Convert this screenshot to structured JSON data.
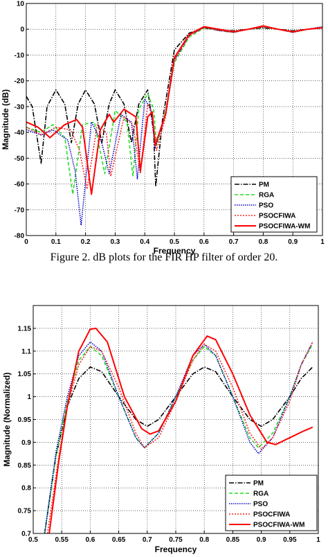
{
  "caption": "Figure 2.    dB plots for the FIR HP filter of order 20.",
  "legend": [
    {
      "name": "PM",
      "color": "#000000",
      "dash": "7 2 1.5 2"
    },
    {
      "name": "RGA",
      "color": "#22dd22",
      "dash": "5 3"
    },
    {
      "name": "PSO",
      "color": "#0000cc",
      "dash": "1.5 1.5"
    },
    {
      "name": "PSOCFIWA",
      "color": "#ff2222",
      "dash": "2 2"
    },
    {
      "name": "PSOCFIWA-WM",
      "color": "#ff0000",
      "dash": ""
    }
  ],
  "chart_data": [
    {
      "type": "line",
      "title": "",
      "xlabel": "Frequency",
      "ylabel": "Magnitude (dB)",
      "xlim": [
        0,
        1
      ],
      "ylim": [
        -80,
        10
      ],
      "grid": true,
      "legend_position": "bottom-right",
      "xticks": [
        0,
        0.1,
        0.2,
        0.3,
        0.4,
        0.5,
        0.6,
        0.7,
        0.8,
        0.9,
        1
      ],
      "yticks": [
        10,
        0,
        -10,
        -20,
        -30,
        -40,
        -50,
        -60,
        -70,
        -80
      ],
      "series": [
        {
          "name": "PM",
          "x": [
            0,
            0.02,
            0.05,
            0.07,
            0.1,
            0.13,
            0.152,
            0.175,
            0.2,
            0.23,
            0.255,
            0.28,
            0.3,
            0.33,
            0.355,
            0.38,
            0.41,
            0.43,
            0.437,
            0.46,
            0.5,
            0.55,
            0.6,
            0.65,
            0.7,
            0.75,
            0.8,
            0.85,
            0.9,
            0.95,
            1.0
          ],
          "y": [
            -26,
            -30,
            -52,
            -30,
            -23.5,
            -29,
            -44,
            -29,
            -23.5,
            -29,
            -44,
            -29,
            -23.5,
            -29,
            -44,
            -29,
            -23.5,
            -40,
            -61,
            -35,
            -8,
            -1.5,
            0.5,
            -0.3,
            -0.6,
            0,
            0.5,
            0,
            -0.6,
            0,
            0.5
          ]
        },
        {
          "name": "RGA",
          "x": [
            0,
            0.05,
            0.09,
            0.13,
            0.157,
            0.19,
            0.23,
            0.265,
            0.3,
            0.34,
            0.36,
            0.38,
            0.41,
            0.43,
            0.44,
            0.47,
            0.5,
            0.55,
            0.6,
            0.65,
            0.7,
            0.75,
            0.8,
            0.85,
            0.9,
            0.95,
            1.0
          ],
          "y": [
            -38,
            -40,
            -37,
            -42,
            -64,
            -37,
            -36,
            -56,
            -31.5,
            -36,
            -57,
            -31,
            -25,
            -31,
            -45,
            -32,
            -13,
            -3,
            0.5,
            -0.5,
            -1.2,
            0,
            0.7,
            0,
            -1.2,
            0,
            0.8
          ]
        },
        {
          "name": "PSO",
          "x": [
            0,
            0.05,
            0.09,
            0.14,
            0.165,
            0.185,
            0.22,
            0.255,
            0.28,
            0.32,
            0.355,
            0.375,
            0.4,
            0.42,
            0.435,
            0.47,
            0.5,
            0.55,
            0.6,
            0.65,
            0.7,
            0.75,
            0.8,
            0.85,
            0.9,
            0.95,
            1.0
          ],
          "y": [
            -39,
            -41,
            -39,
            -43,
            -55,
            -76,
            -36,
            -44,
            -56,
            -33,
            -36,
            -58,
            -27,
            -31,
            -46,
            -33,
            -12,
            -2.5,
            0.8,
            -0.5,
            -1.2,
            0,
            0.9,
            0,
            -1.2,
            0,
            1.0
          ]
        },
        {
          "name": "PSOCFIWA",
          "x": [
            0,
            0.05,
            0.1,
            0.15,
            0.18,
            0.205,
            0.24,
            0.27,
            0.285,
            0.33,
            0.36,
            0.385,
            0.41,
            0.425,
            0.44,
            0.47,
            0.5,
            0.55,
            0.6,
            0.65,
            0.7,
            0.75,
            0.8,
            0.85,
            0.9,
            0.95,
            1.0
          ],
          "y": [
            -38,
            -41,
            -38,
            -39,
            -47,
            -62,
            -37,
            -40,
            -57,
            -34,
            -37,
            -56,
            -29,
            -33,
            -47,
            -34,
            -12,
            -2.5,
            0.7,
            -0.5,
            -1.2,
            0,
            0.8,
            0,
            -1.2,
            0,
            0.8
          ]
        },
        {
          "name": "PSOCFIWA-WM",
          "x": [
            0,
            0.04,
            0.08,
            0.13,
            0.17,
            0.19,
            0.22,
            0.25,
            0.28,
            0.295,
            0.33,
            0.37,
            0.385,
            0.41,
            0.425,
            0.435,
            0.47,
            0.5,
            0.55,
            0.6,
            0.65,
            0.7,
            0.75,
            0.8,
            0.85,
            0.9,
            0.95,
            1.0
          ],
          "y": [
            -36,
            -38,
            -42,
            -37,
            -35,
            -38,
            -64,
            -39,
            -33,
            -36,
            -31,
            -34,
            -55,
            -34,
            -32,
            -45,
            -33,
            -11,
            -2,
            1.0,
            0,
            -1.0,
            0,
            1.3,
            0,
            -1.0,
            0,
            0.6
          ]
        }
      ]
    },
    {
      "type": "line",
      "title": "",
      "xlabel": "Frequency",
      "ylabel": "Magnitude (Normalized)",
      "xlim": [
        0.5,
        1
      ],
      "ylim": [
        0.7,
        1.2
      ],
      "grid": true,
      "legend_position": "bottom-right",
      "xticks": [
        0.5,
        0.55,
        0.6,
        0.65,
        0.7,
        0.75,
        0.8,
        0.85,
        0.9,
        0.95,
        1
      ],
      "yticks": [
        1.15,
        1.1,
        1.05,
        1,
        0.95,
        0.9,
        0.85,
        0.8,
        0.75,
        0.7
      ],
      "series": [
        {
          "name": "PM",
          "x": [
            0.52,
            0.54,
            0.56,
            0.58,
            0.6,
            0.62,
            0.65,
            0.68,
            0.7,
            0.72,
            0.75,
            0.78,
            0.8,
            0.82,
            0.85,
            0.88,
            0.9,
            0.92,
            0.95,
            0.97,
            0.99
          ],
          "y": [
            0.7,
            0.87,
            0.98,
            1.04,
            1.065,
            1.055,
            1.0,
            0.95,
            0.935,
            0.95,
            1.0,
            1.05,
            1.065,
            1.055,
            1.0,
            0.95,
            0.935,
            0.95,
            1.0,
            1.04,
            1.065
          ]
        },
        {
          "name": "RGA",
          "x": [
            0.52,
            0.54,
            0.56,
            0.58,
            0.6,
            0.62,
            0.65,
            0.68,
            0.695,
            0.72,
            0.75,
            0.78,
            0.8,
            0.82,
            0.85,
            0.88,
            0.895,
            0.92,
            0.95,
            0.97,
            0.99
          ],
          "y": [
            0.7,
            0.87,
            0.99,
            1.08,
            1.11,
            1.09,
            1.0,
            0.91,
            0.888,
            0.92,
            1.0,
            1.08,
            1.11,
            1.09,
            1.0,
            0.91,
            0.888,
            0.92,
            1.0,
            1.07,
            1.115
          ]
        },
        {
          "name": "PSO",
          "x": [
            0.52,
            0.54,
            0.56,
            0.58,
            0.6,
            0.62,
            0.65,
            0.68,
            0.695,
            0.72,
            0.75,
            0.78,
            0.8,
            0.82,
            0.85,
            0.88,
            0.895,
            0.92,
            0.95,
            0.97,
            0.99
          ],
          "y": [
            0.7,
            0.88,
            1.0,
            1.09,
            1.12,
            1.1,
            1.0,
            0.91,
            0.888,
            0.92,
            1.0,
            1.09,
            1.115,
            1.09,
            1.0,
            0.9,
            0.875,
            0.91,
            1.0,
            1.07,
            1.12
          ]
        },
        {
          "name": "PSOCFIWA",
          "x": [
            0.525,
            0.545,
            0.56,
            0.58,
            0.6,
            0.62,
            0.65,
            0.68,
            0.695,
            0.72,
            0.75,
            0.78,
            0.8,
            0.82,
            0.85,
            0.88,
            0.9,
            0.92,
            0.95,
            0.97,
            0.99
          ],
          "y": [
            0.7,
            0.87,
            0.98,
            1.07,
            1.11,
            1.1,
            1.02,
            0.92,
            0.888,
            0.91,
            0.99,
            1.08,
            1.115,
            1.1,
            1.02,
            0.92,
            0.885,
            0.91,
            0.99,
            1.07,
            1.12
          ]
        },
        {
          "name": "PSOCFIWA-WM",
          "x": [
            0.528,
            0.545,
            0.56,
            0.58,
            0.6,
            0.61,
            0.63,
            0.66,
            0.69,
            0.705,
            0.72,
            0.75,
            0.78,
            0.805,
            0.82,
            0.85,
            0.88,
            0.91,
            0.925,
            0.95,
            0.975,
            0.99
          ],
          "y": [
            0.7,
            0.86,
            0.98,
            1.1,
            1.148,
            1.15,
            1.12,
            1.0,
            0.93,
            0.918,
            0.925,
            0.99,
            1.09,
            1.133,
            1.125,
            1.05,
            0.96,
            0.9,
            0.895,
            0.91,
            0.925,
            0.933
          ]
        }
      ]
    }
  ]
}
